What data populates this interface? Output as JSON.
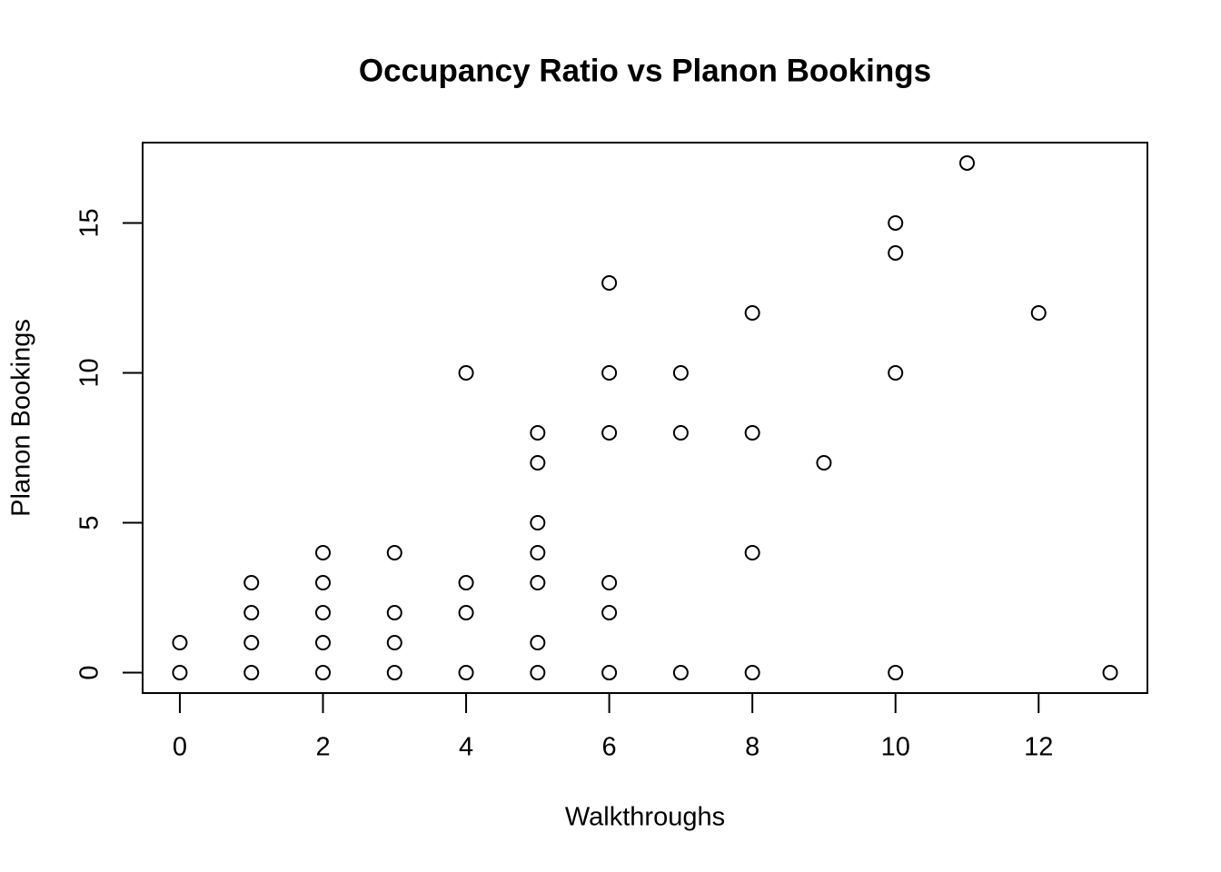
{
  "chart_data": {
    "type": "scatter",
    "title": "Occupancy Ratio vs Planon Bookings",
    "x_label": "Walkthroughs",
    "y_label": "Planon Bookings",
    "x": [
      0,
      0,
      1,
      1,
      1,
      1,
      2,
      2,
      2,
      2,
      2,
      3,
      3,
      3,
      3,
      4,
      4,
      4,
      4,
      5,
      5,
      5,
      5,
      5,
      5,
      5,
      6,
      6,
      6,
      6,
      6,
      6,
      7,
      7,
      7,
      8,
      8,
      8,
      8,
      9,
      10,
      10,
      10,
      10,
      11,
      12,
      13
    ],
    "values": [
      0,
      1,
      0,
      1,
      2,
      3,
      0,
      1,
      2,
      3,
      4,
      0,
      1,
      2,
      4,
      0,
      2,
      3,
      10,
      0,
      1,
      3,
      4,
      5,
      7,
      8,
      0,
      2,
      3,
      8,
      10,
      13,
      0,
      8,
      10,
      0,
      4,
      8,
      12,
      7,
      0,
      10,
      14,
      15,
      17,
      12,
      0
    ],
    "color": "#000000",
    "xlim": [
      -0.52,
      13.52
    ],
    "ylim": [
      -0.68,
      17.68
    ],
    "xticks": [
      0,
      2,
      4,
      6,
      8,
      10,
      12
    ],
    "yticks": [
      0,
      5,
      10,
      15
    ]
  }
}
